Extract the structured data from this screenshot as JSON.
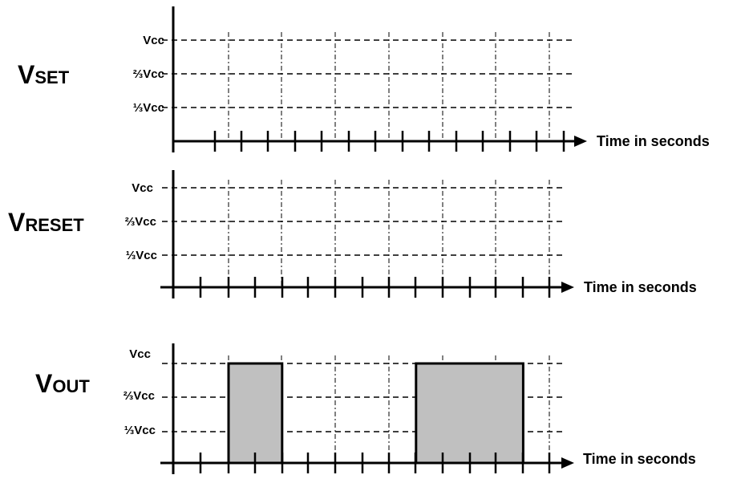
{
  "panels": [
    {
      "id": "vset",
      "signal": {
        "main": "V",
        "sub": "SET"
      },
      "levels": [
        "Vcc",
        "⅔Vcc",
        "⅓Vcc"
      ],
      "time_label": "Time in seconds",
      "pulses": []
    },
    {
      "id": "vreset",
      "signal": {
        "main": "V",
        "sub": "RESET"
      },
      "levels": [
        "Vcc",
        "⅔Vcc",
        "⅓Vcc"
      ],
      "time_label": "Time in seconds",
      "pulses": []
    },
    {
      "id": "vout",
      "signal": {
        "main": "V",
        "sub": "OUT"
      },
      "levels": [
        "Vcc",
        "⅔Vcc",
        "⅓Vcc"
      ],
      "time_label": "Time in seconds",
      "pulses": [
        {
          "from": 2,
          "to": 4
        },
        {
          "from": 9,
          "to": 13
        }
      ]
    }
  ],
  "colors": {
    "line": "#000000",
    "pulse_fill": "#c0c0c0"
  }
}
